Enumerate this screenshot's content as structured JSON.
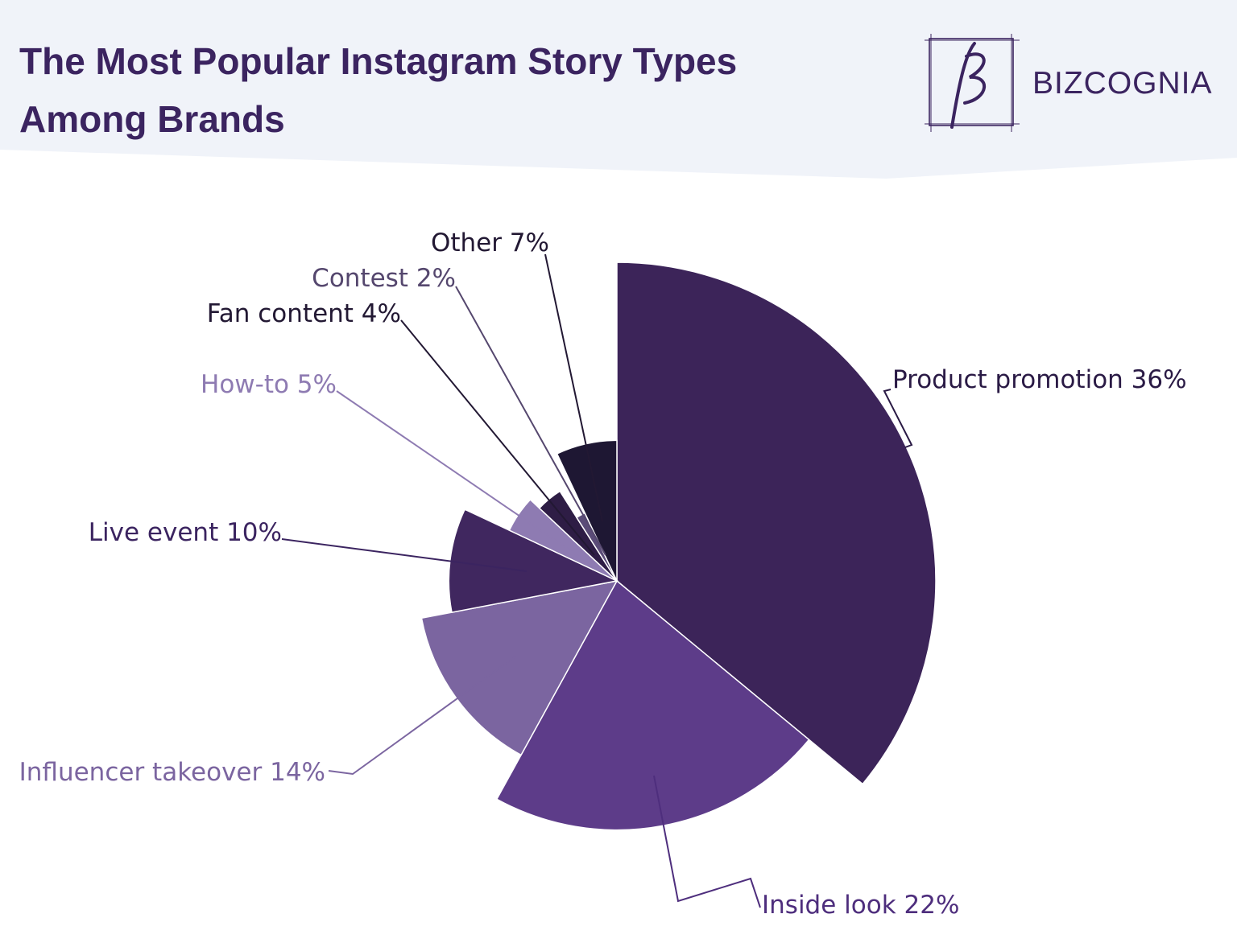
{
  "header": {
    "title": "The Most Popular Instagram Story Types Among Brands",
    "brand": "BIZCOGNIA",
    "band_color": "#f0f3f9",
    "title_color": "#3b2460"
  },
  "chart_data": {
    "type": "pie",
    "variant": "variable-radius",
    "title": "The Most Popular Instagram Story Types Among Brands",
    "slices": [
      {
        "label": "Product promotion 36%",
        "category": "Product promotion",
        "value": 36,
        "color": "#3c2459"
      },
      {
        "label": "Inside look 22%",
        "category": "Inside look",
        "value": 22,
        "color": "#5d3c89"
      },
      {
        "label": "Influencer takeover 14%",
        "category": "Influencer takeover",
        "value": 14,
        "color": "#7b65a0"
      },
      {
        "label": "Live event 10%",
        "category": "Live event",
        "value": 10,
        "color": "#40275f"
      },
      {
        "label": "How-to 5%",
        "category": "How-to",
        "value": 5,
        "color": "#8e7bb2"
      },
      {
        "label": "Fan content 4%",
        "category": "Fan content",
        "value": 4,
        "color": "#2e1d45"
      },
      {
        "label": "Contest 2%",
        "category": "Contest",
        "value": 2,
        "color": "#5b4c78"
      },
      {
        "label": "Other 7%",
        "category": "Other",
        "value": 7,
        "color": "#1e1733"
      }
    ],
    "label_colors": [
      "#2a1a45",
      "#4e2e7d",
      "#7b65a0",
      "#3b2460",
      "#8e7bb2",
      "#221833",
      "#55476e",
      "#221833"
    ],
    "legend": "none"
  }
}
